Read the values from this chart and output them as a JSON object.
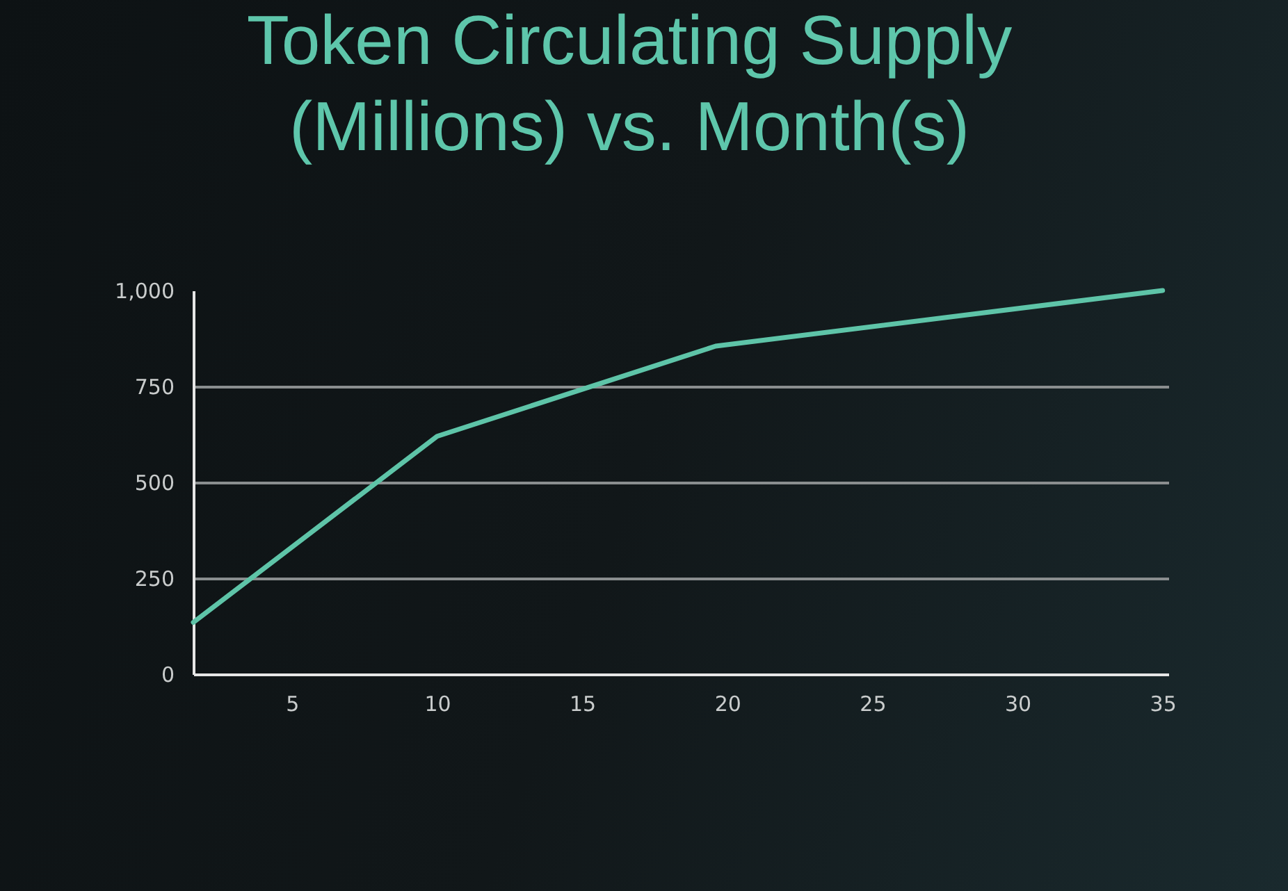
{
  "chart_data": {
    "type": "line",
    "title": "Token Circulating Supply (Millions) vs. Month(s)",
    "x": [
      1.6,
      10,
      19.6,
      35
    ],
    "series": [
      {
        "color": "#5ec4a8",
        "values": [
          135,
          620,
          855,
          1000
        ]
      }
    ],
    "xlim": [
      1.6,
      35.2
    ],
    "xticks": [
      5,
      10,
      15,
      20,
      25,
      30,
      35
    ],
    "ylim": [
      0,
      1000
    ],
    "yticks": [
      0,
      250,
      500,
      750,
      {
        "value": 1000,
        "label": "1,000"
      }
    ],
    "grid": "y",
    "marker": "none",
    "line_style": "solid"
  }
}
